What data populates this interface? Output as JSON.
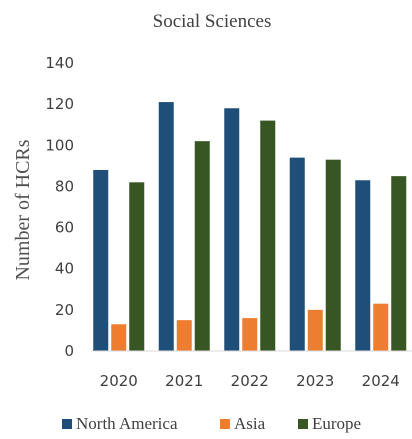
{
  "chart_data": {
    "type": "bar",
    "title": "Social Sciences",
    "ylabel": "Number of HCRs",
    "xlabel": "",
    "categories": [
      "2020",
      "2021",
      "2022",
      "2023",
      "2024"
    ],
    "ylim": [
      0,
      140
    ],
    "yticks": [
      "0",
      "20",
      "40",
      "60",
      "80",
      "100",
      "120",
      "140"
    ],
    "grid": false,
    "legend_position": "bottom",
    "series": [
      {
        "name": "North America",
        "color": "#1f4e79",
        "values": [
          88,
          121,
          118,
          94,
          83
        ]
      },
      {
        "name": "Asia",
        "color": "#ed7d31",
        "values": [
          13,
          15,
          16,
          20,
          23
        ]
      },
      {
        "name": "Europe",
        "color": "#375623",
        "values": [
          82,
          102,
          112,
          93,
          85
        ]
      }
    ]
  }
}
